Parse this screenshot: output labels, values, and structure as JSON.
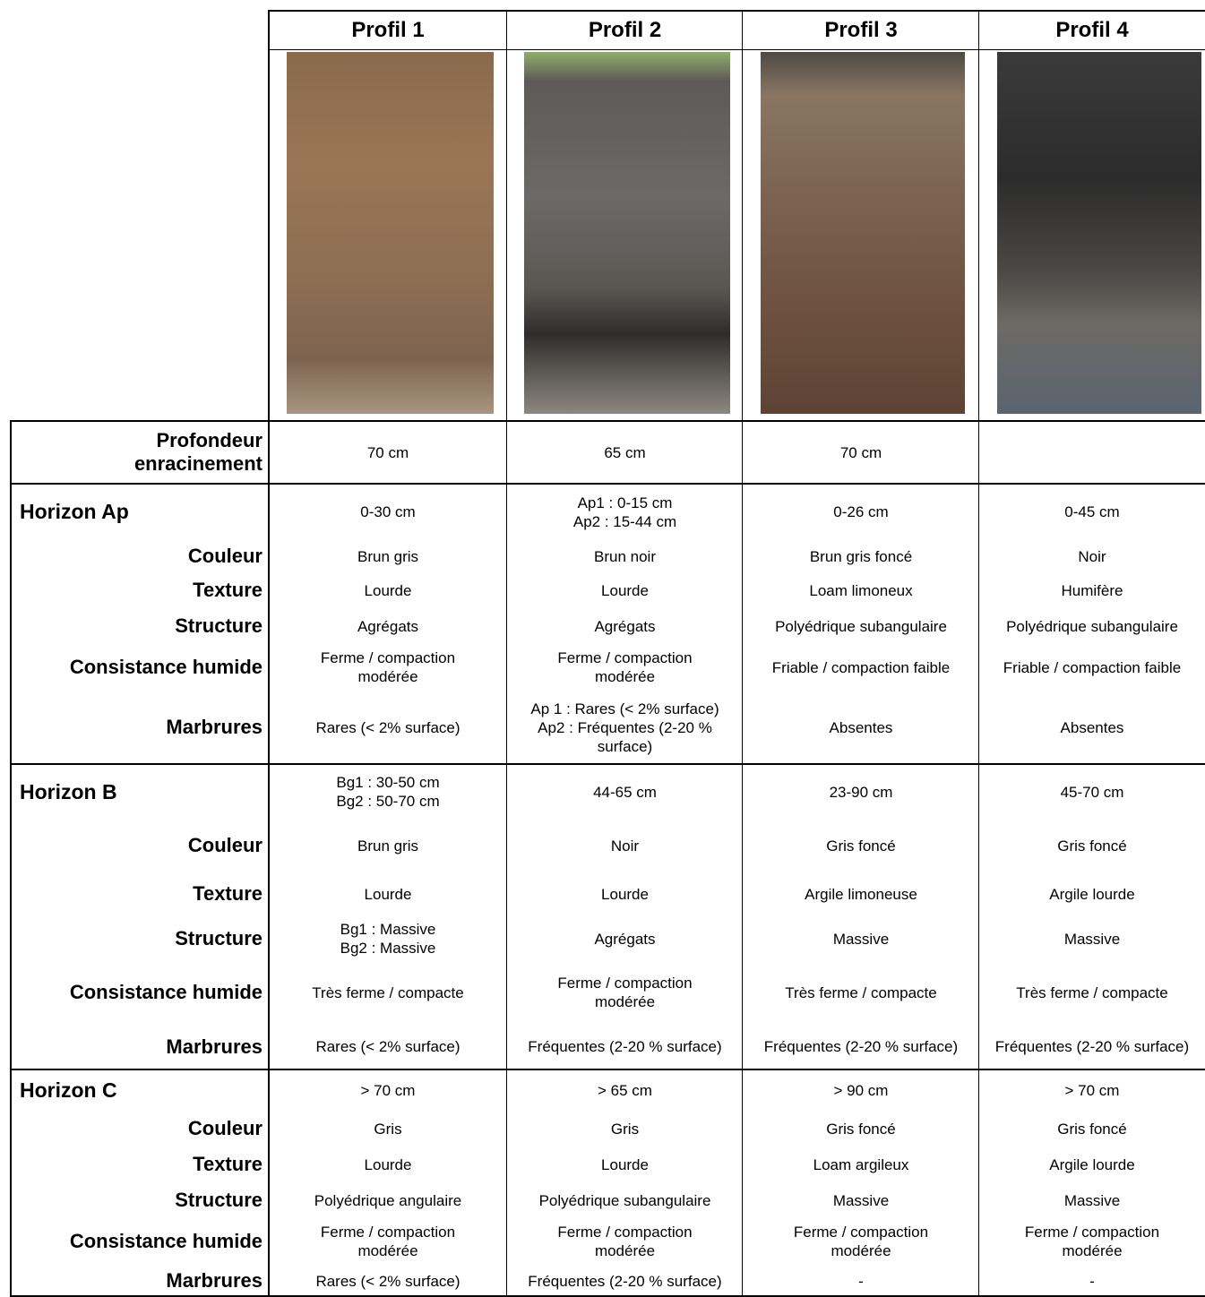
{
  "header": {
    "columns": [
      "Profil 1",
      "Profil 2",
      "Profil 3",
      "Profil 4"
    ]
  },
  "profondeur": {
    "label": [
      "Profondeur",
      "enracinement"
    ],
    "cells": [
      [
        "70 cm"
      ],
      [
        "65 cm"
      ],
      [
        "70 cm"
      ],
      []
    ]
  },
  "horizons": [
    {
      "title": "Horizon Ap",
      "range": [
        [
          "0-30 cm"
        ],
        [
          "Ap1 : 0-15 cm",
          "Ap2 : 15-44 cm"
        ],
        [
          "0-26 cm"
        ],
        [
          "0-45 cm"
        ]
      ],
      "rows": [
        {
          "label": "Couleur",
          "cells": [
            [
              "Brun gris"
            ],
            [
              "Brun noir"
            ],
            [
              "Brun gris foncé"
            ],
            [
              "Noir"
            ]
          ]
        },
        {
          "label": "Texture",
          "cells": [
            [
              "Lourde"
            ],
            [
              "Lourde"
            ],
            [
              "Loam limoneux"
            ],
            [
              "Humifère"
            ]
          ]
        },
        {
          "label": "Structure",
          "cells": [
            [
              "Agrégats"
            ],
            [
              "Agrégats"
            ],
            [
              "Polyédrique subangulaire"
            ],
            [
              "Polyédrique subangulaire"
            ]
          ]
        },
        {
          "label": "Consistance humide",
          "cells": [
            [
              "Ferme / compaction",
              "modérée"
            ],
            [
              "Ferme / compaction",
              "modérée"
            ],
            [
              "Friable / compaction faible"
            ],
            [
              "Friable / compaction faible"
            ]
          ]
        },
        {
          "label": "Marbrures",
          "cells": [
            [
              "Rares (< 2% surface)"
            ],
            [
              "Ap 1 : Rares (< 2% surface)",
              "Ap2 : Fréquentes (2-20 %",
              "surface)"
            ],
            [
              "Absentes"
            ],
            [
              "Absentes"
            ]
          ]
        }
      ]
    },
    {
      "title": "Horizon B",
      "range": [
        [
          "Bg1 : 30-50 cm",
          "Bg2 : 50-70 cm"
        ],
        [
          "44-65 cm"
        ],
        [
          "23-90 cm"
        ],
        [
          "45-70 cm"
        ]
      ],
      "rows": [
        {
          "label": "Couleur",
          "cells": [
            [
              "Brun gris"
            ],
            [
              "Noir"
            ],
            [
              "Gris foncé"
            ],
            [
              "Gris foncé"
            ]
          ]
        },
        {
          "label": "Texture",
          "cells": [
            [
              "Lourde"
            ],
            [
              "Lourde"
            ],
            [
              "Argile limoneuse"
            ],
            [
              "Argile lourde"
            ]
          ]
        },
        {
          "label": "Structure",
          "cells": [
            [
              "Bg1 : Massive",
              "Bg2 : Massive"
            ],
            [
              "Agrégats"
            ],
            [
              "Massive"
            ],
            [
              "Massive"
            ]
          ]
        },
        {
          "label": "Consistance humide",
          "cells": [
            [
              "Très ferme / compacte"
            ],
            [
              "Ferme / compaction",
              "modérée"
            ],
            [
              "Très ferme / compacte"
            ],
            [
              "Très ferme / compacte"
            ]
          ]
        },
        {
          "label": "Marbrures",
          "cells": [
            [
              "Rares (< 2% surface)"
            ],
            [
              "Fréquentes (2-20 % surface)"
            ],
            [
              "Fréquentes (2-20 % surface)"
            ],
            [
              "Fréquentes (2-20 % surface)"
            ]
          ]
        }
      ]
    },
    {
      "title": "Horizon C",
      "range": [
        [
          "> 70 cm"
        ],
        [
          "> 65 cm"
        ],
        [
          "> 90 cm"
        ],
        [
          "> 70 cm"
        ]
      ],
      "rows": [
        {
          "label": "Couleur",
          "cells": [
            [
              "Gris"
            ],
            [
              "Gris"
            ],
            [
              "Gris foncé"
            ],
            [
              "Gris foncé"
            ]
          ]
        },
        {
          "label": "Texture",
          "cells": [
            [
              "Lourde"
            ],
            [
              "Lourde"
            ],
            [
              "Loam argileux"
            ],
            [
              "Argile lourde"
            ]
          ]
        },
        {
          "label": "Structure",
          "cells": [
            [
              "Polyédrique angulaire"
            ],
            [
              "Polyédrique subangulaire"
            ],
            [
              "Massive"
            ],
            [
              "Massive"
            ]
          ]
        },
        {
          "label": "Consistance humide",
          "cells": [
            [
              "Ferme / compaction",
              "modérée"
            ],
            [
              "Ferme / compaction",
              "modérée"
            ],
            [
              "Ferme / compaction",
              "modérée"
            ],
            [
              "Ferme / compaction",
              "modérée"
            ]
          ]
        },
        {
          "label": "Marbrures",
          "cells": [
            [
              "Rares (< 2% surface)"
            ],
            [
              "Fréquentes (2-20 % surface)"
            ],
            [
              "-"
            ],
            [
              "-"
            ]
          ]
        }
      ]
    }
  ]
}
